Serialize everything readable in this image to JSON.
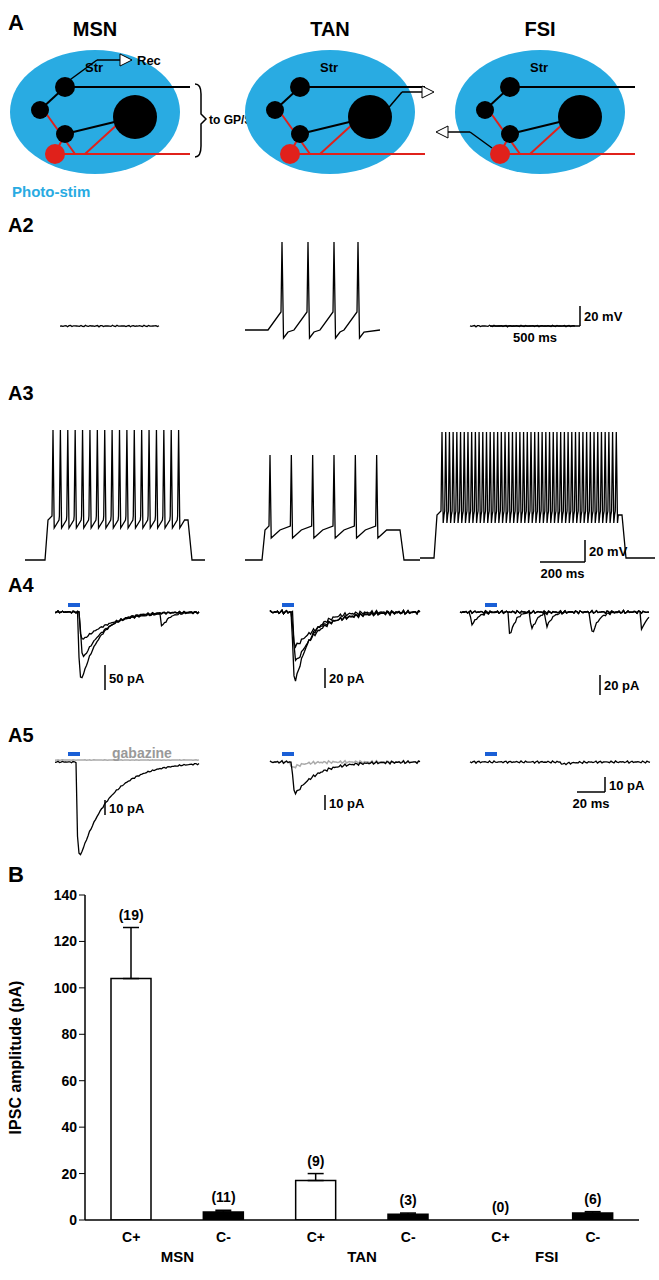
{
  "panel_A": {
    "label": "A",
    "photo_stim": "Photo-stim",
    "columns": [
      "MSN",
      "TAN",
      "FSI"
    ],
    "schematic_labels": {
      "region": "Str",
      "recording": "Rec",
      "projection": "to GP/SN"
    },
    "rows": [
      {
        "label": "A2",
        "scale_y": [
          "20 mV"
        ],
        "scale_x": "500 ms"
      },
      {
        "label": "A3",
        "scale_y": [
          "20 mV"
        ],
        "scale_x": "200 ms"
      },
      {
        "label": "A4",
        "scale_y": [
          "50 pA",
          "20 pA",
          "20 pA"
        ]
      },
      {
        "label": "A5",
        "scale_y": [
          "10 pA",
          "10 pA",
          "10 pA"
        ],
        "scale_x": "20 ms",
        "drug": "gabazine"
      }
    ]
  },
  "chart_data": {
    "type": "bar",
    "panel_label": "B",
    "y_label": "IPSC amplitude (pA)",
    "categories": [
      "C+",
      "C-",
      "C+",
      "C-",
      "C+",
      "C-"
    ],
    "groups": [
      {
        "label": "MSN",
        "start": 0,
        "end": 1
      },
      {
        "label": "TAN",
        "start": 2,
        "end": 3
      },
      {
        "label": "FSI",
        "start": 4,
        "end": 5
      }
    ],
    "values": [
      104,
      3.5,
      17,
      2.5,
      null,
      3
    ],
    "errors": [
      22,
      0.7,
      3,
      0.5,
      null,
      0.6
    ],
    "n_labels": [
      "(19)",
      "(11)",
      "(9)",
      "(3)",
      "(0)",
      "(6)"
    ],
    "colors": [
      "#ffffff",
      "#000000",
      "#ffffff",
      "#000000",
      "#ffffff",
      "#000000"
    ],
    "ylim": [
      0,
      140
    ],
    "yticks": [
      0,
      20,
      40,
      60,
      80,
      100,
      120,
      140
    ]
  }
}
